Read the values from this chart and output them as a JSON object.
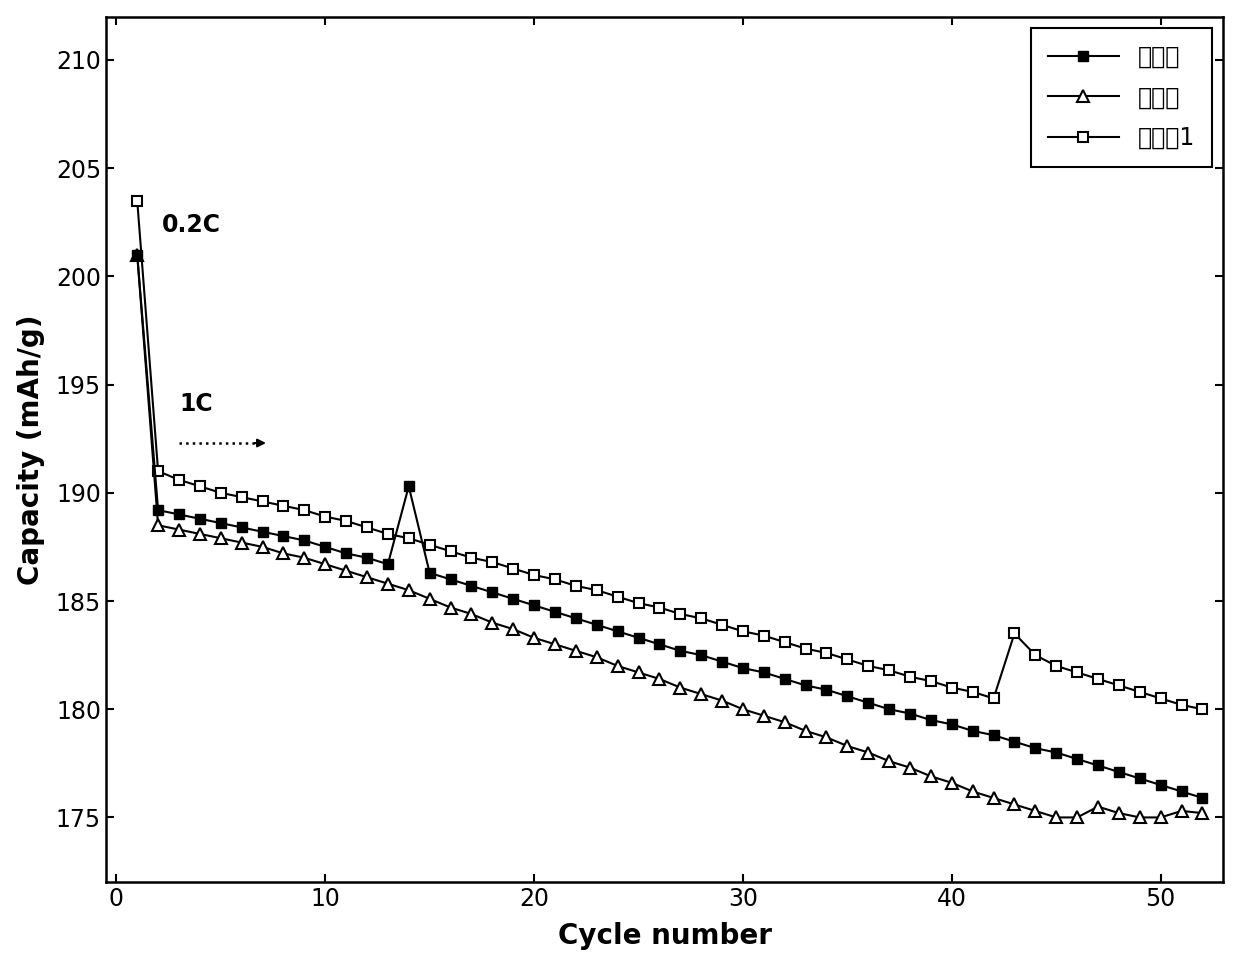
{
  "xlabel": "Cycle number",
  "ylabel": "Capacity (mAh/g)",
  "xlim": [
    -0.5,
    53
  ],
  "ylim": [
    172,
    212
  ],
  "yticks": [
    175,
    180,
    185,
    190,
    195,
    200,
    205,
    210
  ],
  "xticks": [
    0,
    10,
    20,
    30,
    40,
    50
  ],
  "legend_labels": [
    "未改性",
    "对比例",
    "实施例1"
  ],
  "annotation_02C": "0.2C",
  "annotation_1C": "1C",
  "line_color": "#000000",
  "bg_color": "#ffffff",
  "fontsize_label": 20,
  "fontsize_tick": 17,
  "fontsize_legend": 17,
  "fontsize_annotation": 17,
  "series1_x": [
    1,
    2,
    3,
    4,
    5,
    6,
    7,
    8,
    9,
    10,
    11,
    12,
    13,
    14,
    15,
    16,
    17,
    18,
    19,
    20,
    21,
    22,
    23,
    24,
    25,
    26,
    27,
    28,
    29,
    30,
    31,
    32,
    33,
    34,
    35,
    36,
    37,
    38,
    39,
    40,
    41,
    42,
    43,
    44,
    45,
    46,
    47,
    48,
    49,
    50,
    51,
    52
  ],
  "series1_y": [
    201.0,
    189.2,
    189.0,
    188.8,
    188.6,
    188.4,
    188.2,
    188.0,
    187.8,
    187.5,
    187.2,
    187.0,
    186.7,
    190.3,
    186.3,
    186.0,
    185.7,
    185.4,
    185.1,
    184.8,
    184.5,
    184.2,
    183.9,
    183.6,
    183.3,
    183.0,
    182.7,
    182.5,
    182.2,
    181.9,
    181.7,
    181.4,
    181.1,
    180.9,
    180.6,
    180.3,
    180.0,
    179.8,
    179.5,
    179.3,
    179.0,
    178.8,
    178.5,
    178.2,
    178.0,
    177.7,
    177.4,
    177.1,
    176.8,
    176.5,
    176.2,
    175.9
  ],
  "series2_x": [
    1,
    2,
    3,
    4,
    5,
    6,
    7,
    8,
    9,
    10,
    11,
    12,
    13,
    14,
    15,
    16,
    17,
    18,
    19,
    20,
    21,
    22,
    23,
    24,
    25,
    26,
    27,
    28,
    29,
    30,
    31,
    32,
    33,
    34,
    35,
    36,
    37,
    38,
    39,
    40,
    41,
    42,
    43,
    44,
    45,
    46,
    47,
    48,
    49,
    50,
    51,
    52
  ],
  "series2_y": [
    201.0,
    188.5,
    188.3,
    188.1,
    187.9,
    187.7,
    187.5,
    187.2,
    187.0,
    186.7,
    186.4,
    186.1,
    185.8,
    185.5,
    185.1,
    184.7,
    184.4,
    184.0,
    183.7,
    183.3,
    183.0,
    182.7,
    182.4,
    182.0,
    181.7,
    181.4,
    181.0,
    180.7,
    180.4,
    180.0,
    179.7,
    179.4,
    179.0,
    178.7,
    178.3,
    178.0,
    177.6,
    177.3,
    176.9,
    176.6,
    176.2,
    175.9,
    175.6,
    175.3,
    175.0,
    175.0,
    175.5,
    175.2,
    175.0,
    175.0,
    175.3,
    175.2
  ],
  "series3_x": [
    1,
    2,
    3,
    4,
    5,
    6,
    7,
    8,
    9,
    10,
    11,
    12,
    13,
    14,
    15,
    16,
    17,
    18,
    19,
    20,
    21,
    22,
    23,
    24,
    25,
    26,
    27,
    28,
    29,
    30,
    31,
    32,
    33,
    34,
    35,
    36,
    37,
    38,
    39,
    40,
    41,
    42,
    43,
    44,
    45,
    46,
    47,
    48,
    49,
    50,
    51,
    52
  ],
  "series3_y": [
    203.5,
    191.0,
    190.6,
    190.3,
    190.0,
    189.8,
    189.6,
    189.4,
    189.2,
    188.9,
    188.7,
    188.4,
    188.1,
    187.9,
    187.6,
    187.3,
    187.0,
    186.8,
    186.5,
    186.2,
    186.0,
    185.7,
    185.5,
    185.2,
    184.9,
    184.7,
    184.4,
    184.2,
    183.9,
    183.6,
    183.4,
    183.1,
    182.8,
    182.6,
    182.3,
    182.0,
    181.8,
    181.5,
    181.3,
    181.0,
    180.8,
    180.5,
    183.5,
    182.5,
    182.0,
    181.7,
    181.4,
    181.1,
    180.8,
    180.5,
    180.2,
    180.0
  ]
}
